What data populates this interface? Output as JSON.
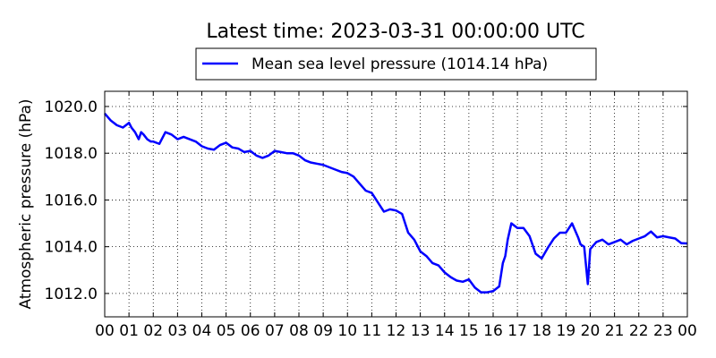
{
  "chart_data": {
    "type": "line",
    "title": "Latest time: 2023-03-31 00:00:00 UTC",
    "xlabel": "",
    "ylabel": "Atmospheric pressure (hPa)",
    "legend": "top-center",
    "grid": true,
    "xlim": [
      0,
      24
    ],
    "ylim": [
      1011,
      1020.65
    ],
    "x_ticks": [
      0,
      1,
      2,
      3,
      4,
      5,
      6,
      7,
      8,
      9,
      10,
      11,
      12,
      13,
      14,
      15,
      16,
      17,
      18,
      19,
      20,
      21,
      22,
      23,
      24
    ],
    "x_tick_labels": [
      "00",
      "01",
      "02",
      "03",
      "04",
      "05",
      "06",
      "07",
      "08",
      "09",
      "10",
      "11",
      "12",
      "13",
      "14",
      "15",
      "16",
      "17",
      "18",
      "19",
      "20",
      "21",
      "22",
      "23",
      "00"
    ],
    "y_ticks": [
      1012,
      1014,
      1016,
      1018,
      1020
    ],
    "y_tick_labels": [
      "1012.0",
      "1014.0",
      "1016.0",
      "1018.0",
      "1020.0"
    ],
    "series": [
      {
        "name": "Mean sea level pressure (1014.14 hPa)",
        "color": "#0000ff",
        "x": [
          0,
          0.25,
          0.5,
          0.75,
          1.0,
          1.1,
          1.25,
          1.4,
          1.5,
          1.6,
          1.75,
          1.9,
          2.0,
          2.25,
          2.5,
          2.75,
          3.0,
          3.25,
          3.5,
          3.75,
          4.0,
          4.25,
          4.5,
          4.75,
          5.0,
          5.25,
          5.5,
          5.75,
          6.0,
          6.25,
          6.5,
          6.75,
          7.0,
          7.25,
          7.5,
          7.75,
          8.0,
          8.25,
          8.5,
          8.75,
          9.0,
          9.25,
          9.5,
          9.75,
          10.0,
          10.25,
          10.5,
          10.75,
          11.0,
          11.25,
          11.5,
          11.75,
          12.0,
          12.25,
          12.5,
          12.75,
          13.0,
          13.25,
          13.5,
          13.75,
          14.0,
          14.25,
          14.5,
          14.75,
          15.0,
          15.25,
          15.5,
          15.75,
          16.0,
          16.25,
          16.4,
          16.5,
          16.6,
          16.75,
          17.0,
          17.25,
          17.5,
          17.75,
          18.0,
          18.25,
          18.5,
          18.75,
          19.0,
          19.25,
          19.5,
          19.6,
          19.75,
          19.9,
          20.0,
          20.25,
          20.5,
          20.75,
          21.0,
          21.25,
          21.5,
          21.75,
          22.0,
          22.25,
          22.5,
          22.75,
          23.0,
          23.25,
          23.5,
          23.75,
          24.0
        ],
        "values": [
          1019.7,
          1019.4,
          1019.2,
          1019.1,
          1019.3,
          1019.1,
          1018.9,
          1018.6,
          1018.9,
          1018.8,
          1018.6,
          1018.5,
          1018.5,
          1018.4,
          1018.9,
          1018.8,
          1018.6,
          1018.7,
          1018.6,
          1018.5,
          1018.3,
          1018.2,
          1018.15,
          1018.35,
          1018.45,
          1018.25,
          1018.2,
          1018.05,
          1018.1,
          1017.9,
          1017.8,
          1017.9,
          1018.1,
          1018.05,
          1018.0,
          1018.0,
          1017.9,
          1017.7,
          1017.6,
          1017.55,
          1017.5,
          1017.4,
          1017.3,
          1017.2,
          1017.15,
          1017.0,
          1016.7,
          1016.4,
          1016.3,
          1015.9,
          1015.5,
          1015.6,
          1015.55,
          1015.4,
          1014.6,
          1014.3,
          1013.8,
          1013.6,
          1013.3,
          1013.2,
          1012.9,
          1012.7,
          1012.55,
          1012.5,
          1012.6,
          1012.25,
          1012.05,
          1012.05,
          1012.1,
          1012.3,
          1013.3,
          1013.6,
          1014.3,
          1015.0,
          1014.8,
          1014.8,
          1014.45,
          1013.7,
          1013.5,
          1013.95,
          1014.35,
          1014.6,
          1014.6,
          1015.0,
          1014.4,
          1014.1,
          1014.0,
          1012.4,
          1013.9,
          1014.2,
          1014.3,
          1014.1,
          1014.2,
          1014.3,
          1014.1,
          1014.25,
          1014.35,
          1014.45,
          1014.65,
          1014.4,
          1014.45,
          1014.4,
          1014.35,
          1014.15,
          1014.14
        ]
      }
    ]
  }
}
